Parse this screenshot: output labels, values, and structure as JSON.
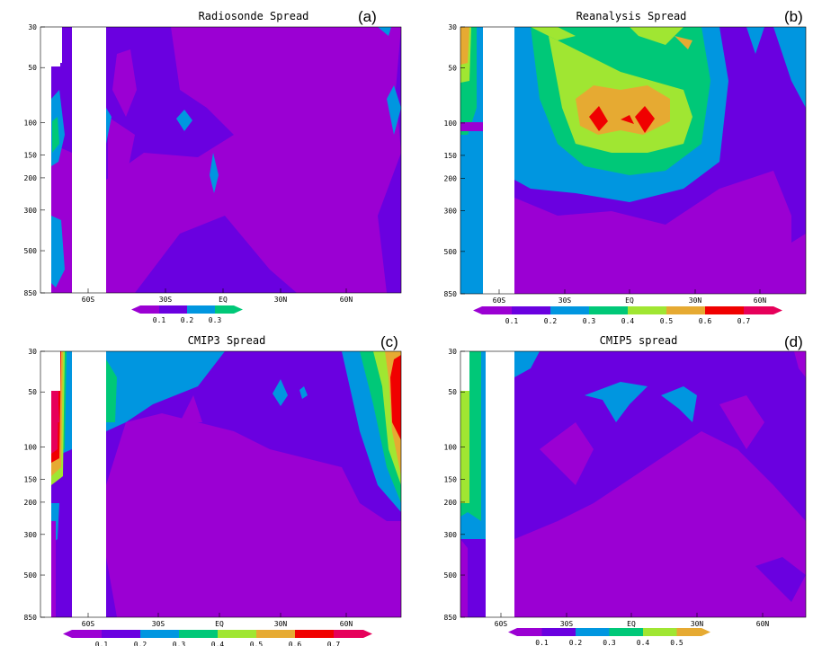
{
  "chart_data": [
    {
      "type": "contour",
      "title": "Radiosonde Spread",
      "panel_label": "(a)",
      "y_ticks": [
        "30",
        "50",
        "100",
        "150",
        "200",
        "300",
        "500",
        "850"
      ],
      "x_ticks": [
        "60S",
        "30S",
        "EQ",
        "30N",
        "60N"
      ],
      "colorbar_levels": [
        "0.1",
        "0.2",
        "0.3"
      ],
      "colors": [
        "#9b00d3",
        "#6a00e0",
        "#0096e0",
        "#00c878"
      ]
    },
    {
      "type": "contour",
      "title": "Reanalysis Spread",
      "panel_label": "(b)",
      "y_ticks": [
        "30",
        "50",
        "100",
        "150",
        "200",
        "300",
        "500",
        "850"
      ],
      "x_ticks": [
        "60S",
        "30S",
        "EQ",
        "30N",
        "60N"
      ],
      "colorbar_levels": [
        "0.1",
        "0.2",
        "0.3",
        "0.4",
        "0.5",
        "0.6",
        "0.7"
      ],
      "colors": [
        "#9b00d3",
        "#6a00e0",
        "#0096e0",
        "#00c878",
        "#a0e632",
        "#e6aa32",
        "#f00000",
        "#e6005a"
      ]
    },
    {
      "type": "contour",
      "title": "CMIP3 Spread",
      "panel_label": "(c)",
      "y_ticks": [
        "30",
        "50",
        "100",
        "150",
        "200",
        "300",
        "500",
        "850"
      ],
      "x_ticks": [
        "60S",
        "30S",
        "EQ",
        "30N",
        "60N"
      ],
      "colorbar_levels": [
        "0.1",
        "0.2",
        "0.3",
        "0.4",
        "0.5",
        "0.6",
        "0.7"
      ],
      "colors": [
        "#9b00d3",
        "#6a00e0",
        "#0096e0",
        "#00c878",
        "#a0e632",
        "#e6aa32",
        "#f00000",
        "#e6005a"
      ]
    },
    {
      "type": "contour",
      "title": "CMIP5 spread",
      "panel_label": "(d)",
      "y_ticks": [
        "30",
        "50",
        "100",
        "150",
        "200",
        "300",
        "500",
        "850"
      ],
      "x_ticks": [
        "60S",
        "30S",
        "EQ",
        "30N",
        "60N"
      ],
      "colorbar_levels": [
        "0.1",
        "0.2",
        "0.3",
        "0.4",
        "0.5"
      ],
      "colors": [
        "#9b00d3",
        "#6a00e0",
        "#0096e0",
        "#00c878",
        "#a0e632",
        "#e6aa32"
      ]
    }
  ]
}
